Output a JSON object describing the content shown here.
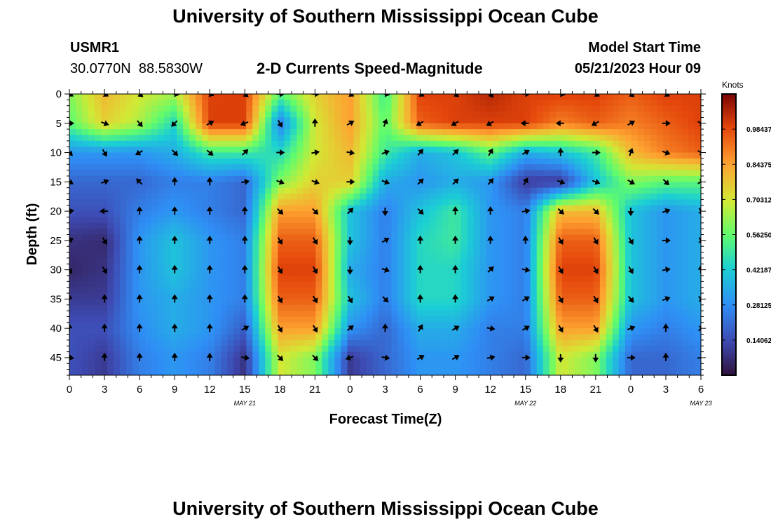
{
  "title": "University of Southern Mississippi Ocean Cube",
  "station": {
    "id": "USMR1",
    "coords": "30.0770N  88.5830W"
  },
  "plot_title": "2-D Currents Speed-Magnitude",
  "model": {
    "label": "Model Start Time",
    "time": "05/21/2023 Hour 09"
  },
  "colorbar": {
    "unit": "Knots",
    "ticks": [
      "0.98437",
      "0.84375",
      "0.70312",
      "0.56250",
      "0.42187",
      "0.28125",
      "0.14062"
    ],
    "tick_values": [
      0.98437,
      0.84375,
      0.70312,
      0.5625,
      0.42187,
      0.28125,
      0.14062
    ],
    "range": [
      0,
      1.125
    ]
  },
  "date_labels": [
    {
      "label": "MAY 21",
      "t": 15
    },
    {
      "label": "MAY 22",
      "t": 39
    },
    {
      "label": "MAY 23",
      "t": 54
    }
  ],
  "chart_data": {
    "type": "heatmap",
    "title": "2-D Currents Speed-Magnitude",
    "xlabel": "Forecast Time(Z)",
    "ylabel": "Depth (ft)",
    "xlim": [
      0,
      54
    ],
    "ylim": [
      48,
      0
    ],
    "x_ticks": [
      0,
      3,
      6,
      9,
      12,
      15,
      18,
      21,
      24,
      27,
      30,
      33,
      36,
      39,
      42,
      45,
      48,
      51,
      54
    ],
    "x_tick_labels": [
      "0",
      "3",
      "6",
      "9",
      "12",
      "15",
      "18",
      "21",
      "0",
      "3",
      "6",
      "9",
      "12",
      "15",
      "18",
      "21",
      "0",
      "3",
      "6"
    ],
    "y_ticks": [
      0,
      5,
      10,
      15,
      20,
      25,
      30,
      35,
      40,
      45
    ],
    "y_tick_labels": [
      "0",
      "5",
      "10",
      "15",
      "20",
      "25",
      "30",
      "35",
      "40",
      "45"
    ],
    "depths": [
      0,
      5,
      10,
      15,
      20,
      25,
      30,
      35,
      40,
      45
    ],
    "times": [
      0,
      3,
      6,
      9,
      12,
      15,
      18,
      21,
      24,
      27,
      30,
      33,
      36,
      39,
      42,
      45,
      48,
      51,
      54
    ],
    "speed_knots": [
      [
        0.6,
        0.8,
        0.7,
        0.65,
        1.0,
        1.0,
        0.55,
        0.75,
        0.85,
        0.5,
        1.0,
        1.0,
        1.05,
        1.0,
        1.0,
        1.0,
        0.95,
        1.0,
        1.0
      ],
      [
        0.55,
        0.75,
        0.65,
        0.45,
        1.0,
        1.0,
        0.25,
        0.7,
        0.85,
        0.55,
        0.95,
        1.0,
        1.0,
        1.0,
        0.9,
        0.95,
        0.9,
        0.95,
        1.0
      ],
      [
        0.3,
        0.3,
        0.3,
        0.35,
        0.5,
        0.5,
        0.45,
        0.7,
        0.8,
        0.5,
        0.35,
        0.4,
        0.55,
        0.35,
        0.4,
        0.5,
        0.8,
        0.9,
        0.95
      ],
      [
        0.2,
        0.2,
        0.2,
        0.25,
        0.25,
        0.2,
        0.6,
        0.75,
        0.75,
        0.35,
        0.3,
        0.35,
        0.3,
        0.1,
        0.1,
        0.4,
        0.6,
        0.55,
        0.55
      ],
      [
        0.15,
        0.15,
        0.25,
        0.3,
        0.25,
        0.2,
        0.85,
        0.85,
        0.4,
        0.25,
        0.4,
        0.5,
        0.3,
        0.25,
        0.8,
        0.8,
        0.4,
        0.3,
        0.35
      ],
      [
        0.08,
        0.06,
        0.3,
        0.4,
        0.3,
        0.25,
        0.95,
        0.95,
        0.4,
        0.25,
        0.45,
        0.5,
        0.3,
        0.25,
        0.95,
        0.95,
        0.4,
        0.3,
        0.35
      ],
      [
        0.05,
        0.08,
        0.3,
        0.4,
        0.3,
        0.25,
        1.0,
        1.0,
        0.35,
        0.25,
        0.45,
        0.45,
        0.3,
        0.25,
        1.0,
        1.0,
        0.4,
        0.3,
        0.35
      ],
      [
        0.1,
        0.1,
        0.3,
        0.35,
        0.3,
        0.25,
        0.95,
        0.95,
        0.4,
        0.25,
        0.45,
        0.45,
        0.3,
        0.25,
        0.95,
        0.95,
        0.4,
        0.3,
        0.35
      ],
      [
        0.15,
        0.15,
        0.28,
        0.35,
        0.3,
        0.18,
        0.85,
        0.85,
        0.3,
        0.2,
        0.35,
        0.35,
        0.25,
        0.25,
        0.85,
        0.85,
        0.3,
        0.25,
        0.3
      ],
      [
        0.15,
        0.1,
        0.25,
        0.3,
        0.25,
        0.08,
        0.7,
        0.6,
        0.1,
        0.2,
        0.3,
        0.3,
        0.25,
        0.2,
        0.7,
        0.6,
        0.2,
        0.2,
        0.25
      ]
    ],
    "direction_deg": [
      [
        120,
        120,
        130,
        100,
        110,
        130,
        90,
        90,
        120,
        100,
        120,
        130,
        140,
        90,
        100,
        120,
        130,
        120,
        110
      ],
      [
        90,
        110,
        140,
        225,
        60,
        250,
        150,
        0,
        60,
        20,
        240,
        240,
        240,
        270,
        270,
        240,
        60,
        90,
        120
      ],
      [
        135,
        150,
        240,
        135,
        130,
        45,
        90,
        80,
        100,
        70,
        40,
        45,
        30,
        60,
        0,
        90,
        20,
        110,
        120
      ],
      [
        120,
        70,
        315,
        0,
        0,
        80,
        110,
        110,
        90,
        110,
        45,
        45,
        40,
        30,
        110,
        110,
        120,
        135,
        60
      ],
      [
        80,
        270,
        0,
        0,
        0,
        0,
        135,
        135,
        45,
        180,
        135,
        0,
        0,
        80,
        135,
        135,
        180,
        70,
        150
      ],
      [
        60,
        150,
        0,
        0,
        0,
        0,
        150,
        150,
        180,
        60,
        0,
        0,
        0,
        0,
        150,
        150,
        150,
        90,
        150
      ],
      [
        150,
        150,
        0,
        0,
        0,
        0,
        150,
        150,
        180,
        110,
        0,
        0,
        45,
        100,
        150,
        150,
        150,
        80,
        0
      ],
      [
        0,
        0,
        0,
        0,
        0,
        0,
        150,
        150,
        150,
        135,
        0,
        0,
        60,
        60,
        150,
        150,
        140,
        70,
        140
      ],
      [
        0,
        0,
        0,
        0,
        0,
        60,
        150,
        150,
        50,
        0,
        30,
        60,
        100,
        60,
        150,
        150,
        70,
        0,
        40
      ],
      [
        100,
        0,
        0,
        0,
        0,
        100,
        135,
        135,
        250,
        100,
        60,
        60,
        80,
        90,
        180,
        180,
        90,
        0,
        80
      ]
    ]
  }
}
